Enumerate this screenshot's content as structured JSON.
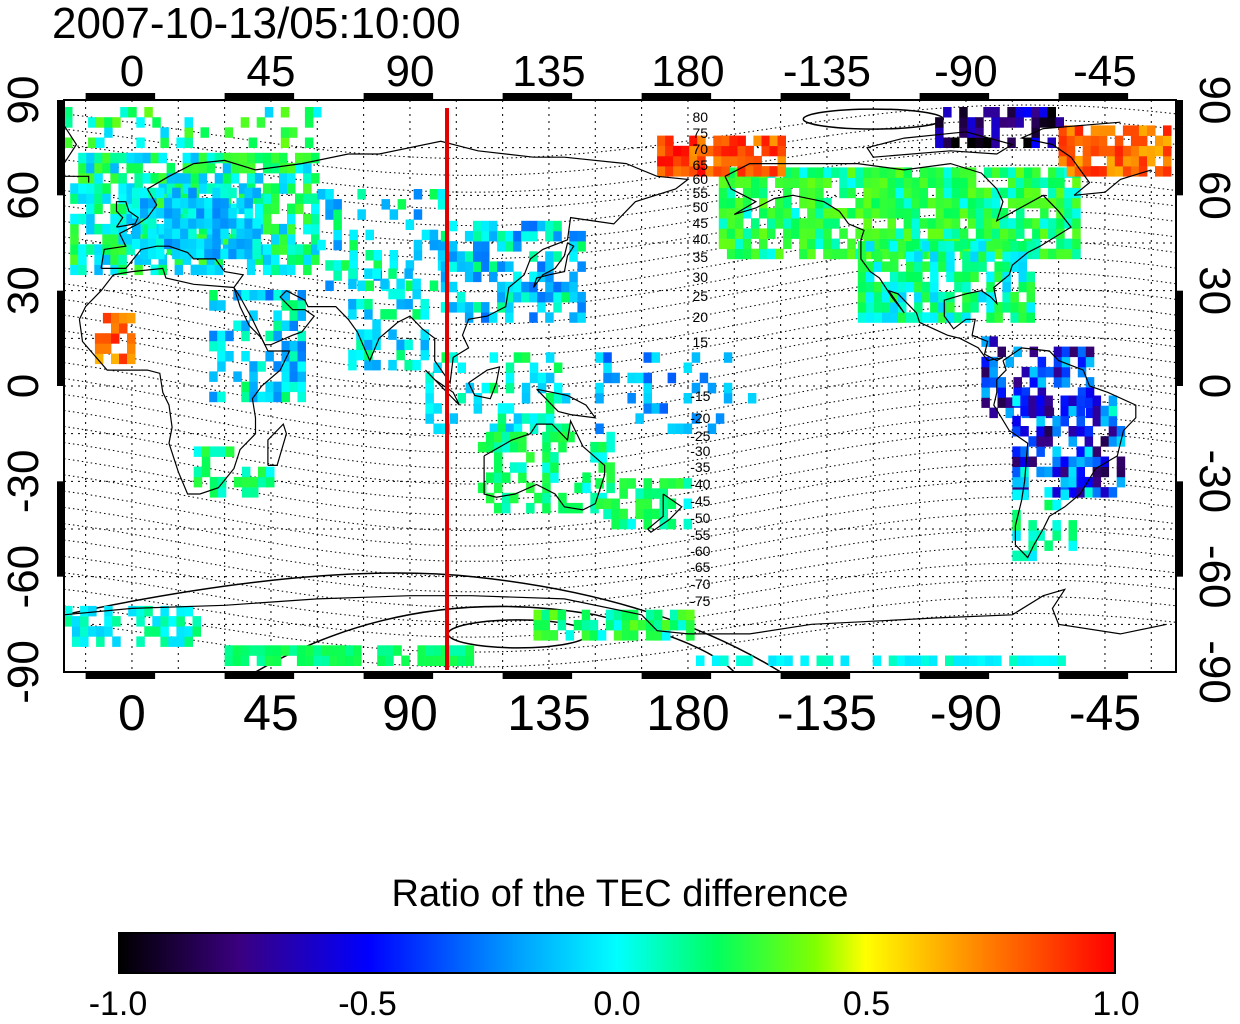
{
  "title": "2007-10-13/05:10:00",
  "lon_ticks_top": [
    "0",
    "45",
    "90",
    "135",
    "180",
    "-135",
    "-90",
    "-45"
  ],
  "lon_ticks_bottom": [
    "0",
    "45",
    "90",
    "135",
    "180",
    "-135",
    "-90",
    "-45"
  ],
  "lat_ticks_left": [
    "90",
    "60",
    "30",
    "0",
    "-30",
    "-60",
    "-90"
  ],
  "lat_ticks_right": [
    "90",
    "60",
    "30",
    "0",
    "-30",
    "-60",
    "-90"
  ],
  "contour_labels_north": [
    "80",
    "75",
    "70",
    "65",
    "60",
    "55",
    "50",
    "45",
    "40",
    "35",
    "30",
    "25",
    "20",
    "15"
  ],
  "contour_labels_south": [
    "-15",
    "-20",
    "-25",
    "-30",
    "-35",
    "-40",
    "-45",
    "-50",
    "-55",
    "-60",
    "-65",
    "-70",
    "-75"
  ],
  "terminator_longitude": 102,
  "terminator_color": "#e00000",
  "colorbar": {
    "title": "Ratio of the TEC difference",
    "labels": [
      "-1.0",
      "-0.5",
      "0.0",
      "0.5",
      "1.0"
    ],
    "min": -1.0,
    "max": 1.0
  }
}
